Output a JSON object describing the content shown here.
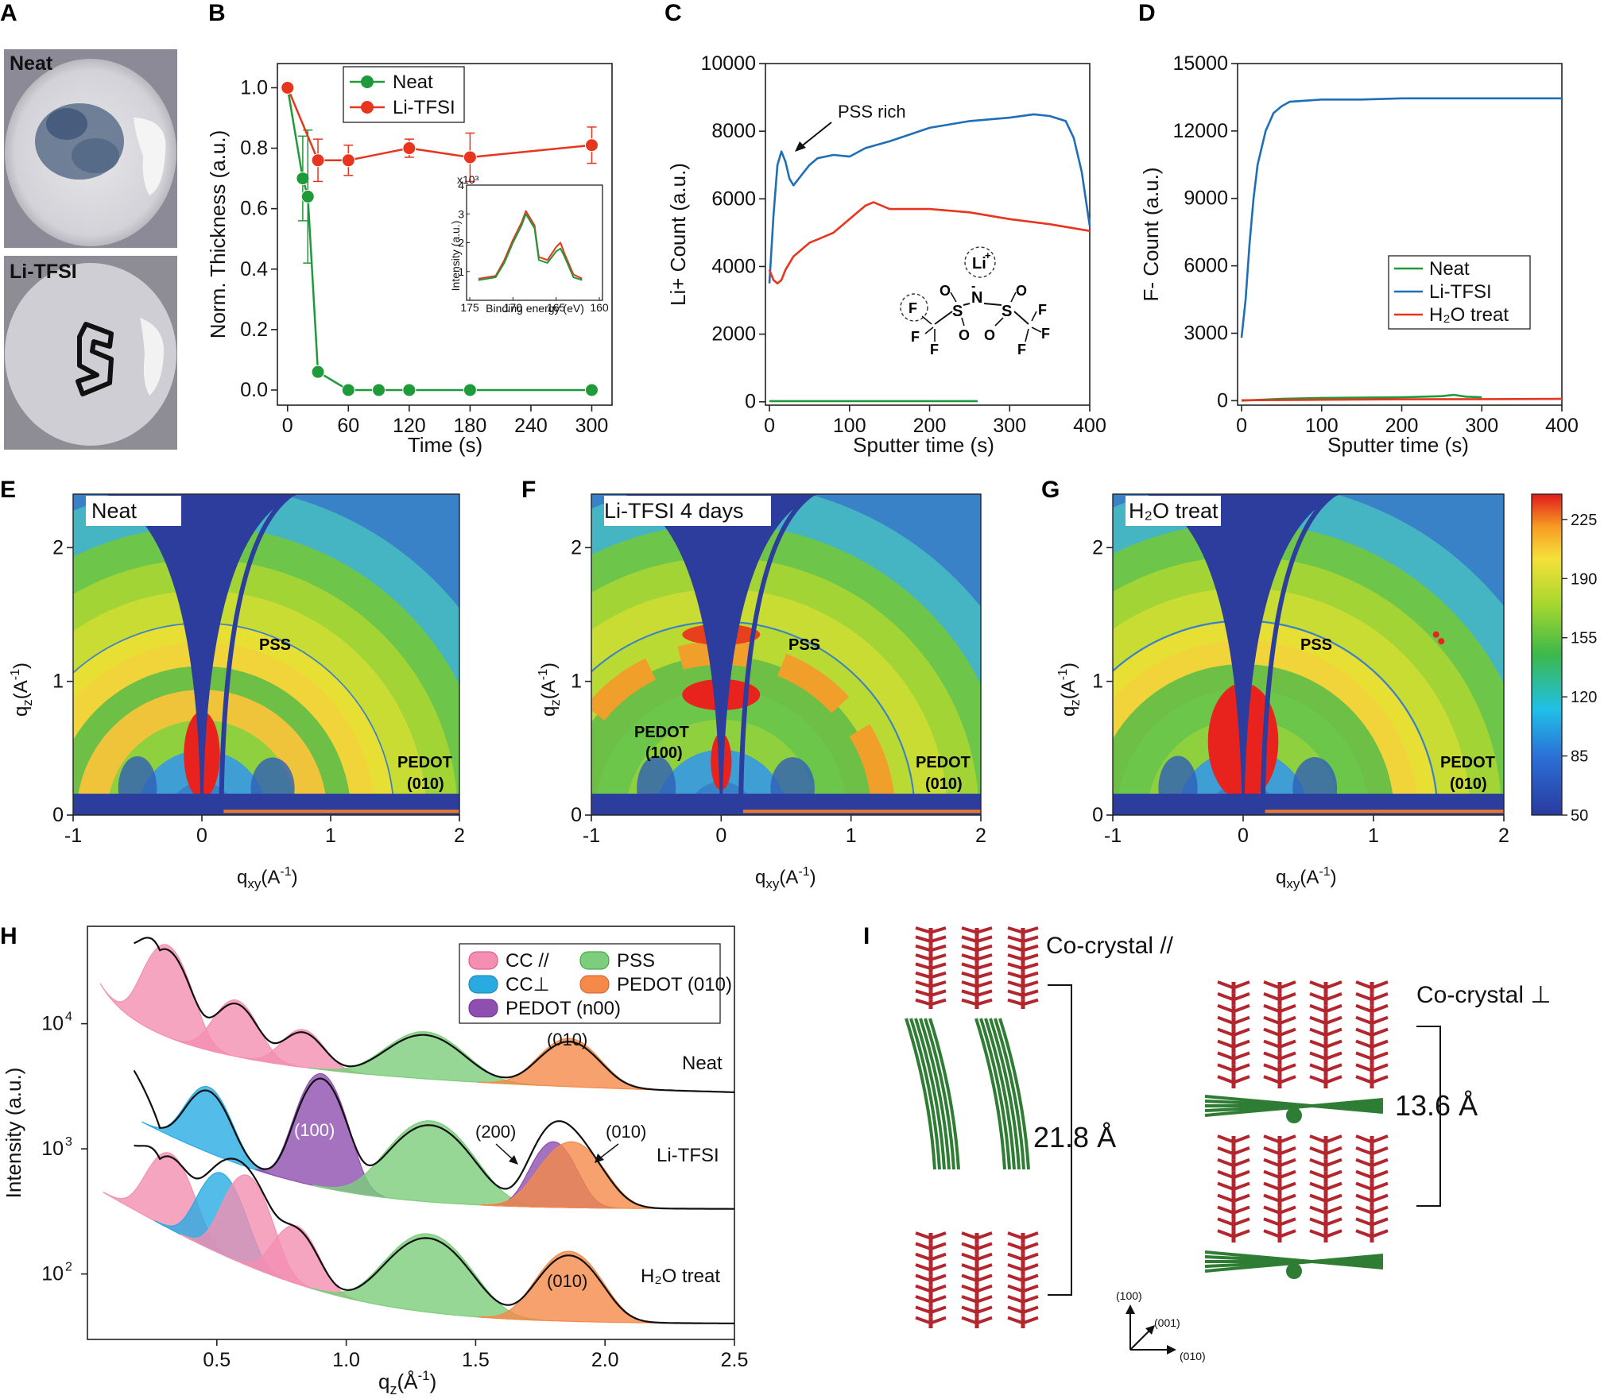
{
  "panels": {
    "A": "A",
    "B": "B",
    "C": "C",
    "D": "D",
    "E": "E",
    "F": "F",
    "G": "G",
    "H": "H",
    "I": "I"
  },
  "photos": {
    "top_label": "Neat",
    "bottom_label": "Li-TFSI",
    "top_dish_color": "#5a6f8a",
    "bottom_dish_color": "#c9ccd1"
  },
  "chart_data": [
    {
      "id": "B",
      "type": "line",
      "xlabel": "Time (s)",
      "ylabel": "Norm. Thickness (a.u.)",
      "xlim": [
        -10,
        320
      ],
      "ylim": [
        -0.05,
        1.08
      ],
      "xticks": [
        0,
        60,
        120,
        180,
        240,
        300
      ],
      "yticks": [
        0.0,
        0.2,
        0.4,
        0.6,
        0.8,
        1.0
      ],
      "ytick_labels": [
        "0.0",
        "0.2",
        "0.4",
        "0.6",
        "0.8",
        "1.0"
      ],
      "legend": "top-center",
      "series": [
        {
          "name": "Neat",
          "color": "#1f9a3a",
          "x": [
            0,
            15,
            20,
            30,
            60,
            90,
            120,
            180,
            300
          ],
          "y": [
            1.0,
            0.7,
            0.64,
            0.06,
            0.0,
            0.0,
            0.0,
            0.0,
            0.0
          ],
          "err": [
            0,
            0.14,
            0.22,
            0,
            0,
            0,
            0,
            0,
            0
          ]
        },
        {
          "name": "Li-TFSI",
          "color": "#e8351e",
          "x": [
            0,
            30,
            60,
            120,
            180,
            300
          ],
          "y": [
            1.0,
            0.76,
            0.76,
            0.8,
            0.77,
            0.81
          ],
          "err": [
            0,
            0.07,
            0.05,
            0.03,
            0.08,
            0.06
          ]
        }
      ],
      "inset": {
        "xlabel": "Binding energy (eV)",
        "ylabel": "Intensity (a.u.)",
        "scale_label": "x10³",
        "xlim": [
          175,
          160
        ],
        "ylim": [
          0,
          4
        ],
        "xticks": [
          175,
          170,
          165,
          160
        ],
        "yticks": [
          1,
          2,
          3,
          4
        ],
        "series": [
          {
            "name": "Li-TFSI",
            "color": "#e8351e",
            "x": [
              174,
              172,
              171,
              170,
              169,
              168.5,
              167.5,
              167,
              166,
              165,
              164.5,
              164,
              163,
              162
            ],
            "y": [
              0.75,
              0.85,
              1.4,
              2.1,
              2.7,
              3.1,
              2.6,
              1.5,
              1.4,
              1.85,
              2.0,
              1.6,
              0.9,
              0.75
            ]
          },
          {
            "name": "Neat",
            "color": "#1f9a3a",
            "x": [
              174,
              172,
              171,
              170,
              169,
              168.5,
              167.5,
              167,
              166,
              165,
              164.5,
              164,
              163,
              162
            ],
            "y": [
              0.7,
              0.8,
              1.3,
              2.0,
              2.6,
              3.0,
              2.5,
              1.4,
              1.3,
              1.7,
              1.8,
              1.5,
              0.8,
              0.7
            ]
          }
        ]
      }
    },
    {
      "id": "C",
      "type": "line",
      "xlabel": "Sputter time (s)",
      "ylabel": "Li+ Count (a.u.)",
      "xlim": [
        -5,
        400
      ],
      "ylim": [
        -100,
        10000
      ],
      "xticks": [
        0,
        100,
        200,
        300,
        400
      ],
      "yticks": [
        0,
        2000,
        4000,
        6000,
        8000,
        10000
      ],
      "annotation": "PSS rich",
      "molecule_labels": {
        "li": "Li",
        "li_sup": "+",
        "n": "N",
        "n_sup": "-",
        "s": "S",
        "o": "O",
        "f": "F"
      },
      "series": [
        {
          "name": "Li-TFSI",
          "color": "#1f6fb8",
          "x": [
            0,
            5,
            10,
            15,
            20,
            25,
            30,
            40,
            50,
            60,
            80,
            100,
            120,
            150,
            200,
            250,
            300,
            330,
            350,
            370,
            380,
            390,
            400
          ],
          "y": [
            3500,
            5500,
            7000,
            7400,
            7100,
            6600,
            6400,
            6700,
            7000,
            7200,
            7300,
            7250,
            7500,
            7700,
            8100,
            8300,
            8400,
            8500,
            8450,
            8300,
            7800,
            6800,
            5200
          ]
        },
        {
          "name": "H₂O treat",
          "color": "#e8351e",
          "x": [
            0,
            5,
            10,
            15,
            20,
            30,
            40,
            50,
            60,
            80,
            100,
            120,
            130,
            150,
            200,
            250,
            300,
            350,
            400
          ],
          "y": [
            3900,
            3600,
            3500,
            3600,
            3900,
            4300,
            4500,
            4700,
            4800,
            5000,
            5400,
            5800,
            5900,
            5700,
            5700,
            5600,
            5400,
            5250,
            5050
          ]
        },
        {
          "name": "Neat",
          "color": "#1f9a3a",
          "x": [
            0,
            100,
            200,
            260
          ],
          "y": [
            20,
            20,
            20,
            20
          ]
        }
      ]
    },
    {
      "id": "D",
      "type": "line",
      "xlabel": "Sputter time (s)",
      "ylabel": "F- Count (a.u.)",
      "xlim": [
        -5,
        400
      ],
      "ylim": [
        -200,
        15000
      ],
      "xticks": [
        0,
        100,
        200,
        300,
        400
      ],
      "yticks": [
        0,
        3000,
        6000,
        9000,
        12000,
        15000
      ],
      "legend": "right",
      "series": [
        {
          "name": "Neat",
          "color": "#1f9a3a",
          "x": [
            0,
            50,
            100,
            200,
            250,
            265,
            280,
            300
          ],
          "y": [
            0,
            80,
            120,
            150,
            200,
            260,
            180,
            150
          ]
        },
        {
          "name": "Li-TFSI",
          "color": "#1f6fb8",
          "x": [
            0,
            5,
            10,
            15,
            20,
            30,
            40,
            50,
            60,
            80,
            100,
            150,
            200,
            300,
            400
          ],
          "y": [
            2800,
            4500,
            7000,
            9000,
            10500,
            12000,
            12800,
            13100,
            13300,
            13350,
            13400,
            13400,
            13450,
            13450,
            13450
          ]
        },
        {
          "name": "H₂O treat",
          "color": "#e8351e",
          "x": [
            0,
            100,
            200,
            300,
            400
          ],
          "y": [
            20,
            40,
            60,
            70,
            80
          ]
        }
      ]
    },
    {
      "id": "E-G",
      "type": "heatmap",
      "xlabel": "q",
      "xlabel_sub": "xy",
      "xlabel_unit": "(A",
      "xlabel_exp": "-1",
      "xlabel_close": ")",
      "ylabel": "q",
      "ylabel_sub": "z",
      "ylabel_unit": "(A",
      "ylabel_exp": "-1",
      "ylabel_close": ")",
      "xlim": [
        -1,
        2
      ],
      "ylim": [
        0,
        2.4
      ],
      "xticks": [
        -1,
        0,
        1,
        2
      ],
      "yticks": [
        0,
        1,
        2
      ],
      "colorbar": {
        "ticks": [
          50,
          85,
          120,
          155,
          190,
          225
        ],
        "range": [
          50,
          240
        ]
      },
      "panels": [
        {
          "id": "E",
          "title": "Neat",
          "labels": {
            "pss": "PSS",
            "pedot010": "PEDOT",
            "pedot010_b": "(010)"
          }
        },
        {
          "id": "F",
          "title": "Li-TFSI 4 days",
          "labels": {
            "pss": "PSS",
            "pedot100": "PEDOT",
            "pedot100_b": "(100)",
            "pedot010": "PEDOT",
            "pedot010_b": "(010)"
          }
        },
        {
          "id": "G",
          "title": "H₂O treat",
          "labels": {
            "pss": "PSS",
            "pedot010": "PEDOT",
            "pedot010_b": "(010)"
          }
        }
      ]
    },
    {
      "id": "H",
      "type": "line",
      "xlabel": "q",
      "xlabel_sub": "z",
      "xlabel_unit": "(Å",
      "xlabel_exp": "-1",
      "xlabel_close": ")",
      "ylabel": "Intensity (a.u.)",
      "xlim": [
        0,
        2.5
      ],
      "yscale": "log",
      "xticks": [
        0.5,
        1.0,
        1.5,
        2.0,
        2.5
      ],
      "ytick_labels": [
        {
          "base": "10",
          "exp": "2"
        },
        {
          "base": "10",
          "exp": "3"
        },
        {
          "base": "10",
          "exp": "4"
        }
      ],
      "legend_entries": [
        {
          "name": "CC //",
          "color": "#f48fb1"
        },
        {
          "name": "PSS",
          "color": "#7ccd7c"
        },
        {
          "name": "CC⊥",
          "color": "#29abe2"
        },
        {
          "name": "PEDOT (010)",
          "color": "#f4894a"
        },
        {
          "name": "PEDOT (n00)",
          "color": "#8e4fb0"
        }
      ],
      "curve_labels": {
        "neat": "Neat",
        "li": "Li-TFSI",
        "h2o": "H₂O treat"
      },
      "peak_labels": {
        "p010a": "(010)",
        "p100": "(100)",
        "p200": "(200)",
        "p010b": "(010)",
        "p010c": "(010)"
      },
      "series": [
        {
          "name": "Neat",
          "peaks": [
            {
              "type": "CC //",
              "center": 0.3,
              "height": 35000.0
            },
            {
              "type": "CC //",
              "center": 0.57,
              "height": 10000.0
            },
            {
              "type": "CC //",
              "center": 0.83,
              "height": 4500.0
            },
            {
              "type": "PSS",
              "center": 1.3,
              "height": 5000.0
            },
            {
              "type": "PEDOT (010)",
              "center": 1.86,
              "height": 4500.0
            }
          ]
        },
        {
          "name": "Li-TFSI",
          "peaks": [
            {
              "type": "CC⊥",
              "center": 0.46,
              "height": 2200.0
            },
            {
              "type": "PEDOT (n00)",
              "center": 0.9,
              "height": 3500.0
            },
            {
              "type": "PSS",
              "center": 1.32,
              "height": 1300.0
            },
            {
              "type": "PEDOT (n00)",
              "center": 1.8,
              "height": 800.0
            },
            {
              "type": "PEDOT (010)",
              "center": 1.87,
              "height": 800.0
            }
          ]
        },
        {
          "name": "H₂O treat",
          "peaks": [
            {
              "type": "CC //",
              "center": 0.31,
              "height": 700.0
            },
            {
              "type": "CC⊥",
              "center": 0.51,
              "height": 500.0
            },
            {
              "type": "CC //",
              "center": 0.61,
              "height": 500.0
            },
            {
              "type": "CC //",
              "center": 0.8,
              "height": 160.0
            },
            {
              "type": "PSS",
              "center": 1.31,
              "height": 160.0
            },
            {
              "type": "PEDOT (010)",
              "center": 1.86,
              "height": 110.0
            }
          ]
        }
      ]
    }
  ],
  "structure": {
    "left_title": "Co-crystal //",
    "left_spacing": "21.8 Å",
    "right_title": "Co-crystal ⊥",
    "right_spacing": "13.6 Å",
    "axes": {
      "up": "(100)",
      "diag": "(001)",
      "right": "(010)"
    },
    "pedot_color": "#b3262e",
    "pss_color": "#2f7d34"
  }
}
